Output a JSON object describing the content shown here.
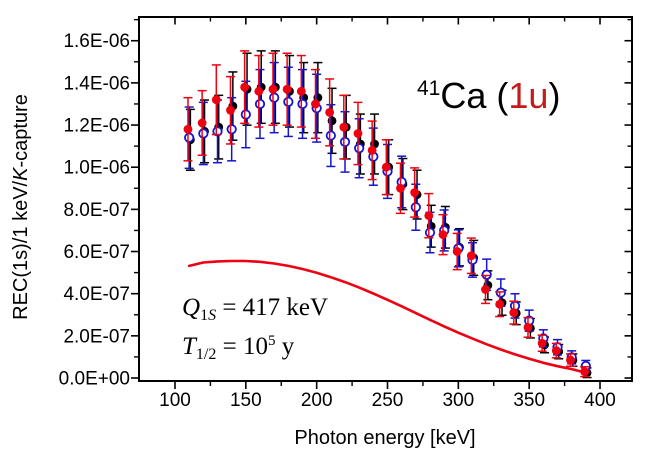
{
  "figure": {
    "title": {
      "mass": "41",
      "element": "Ca",
      "open": " (",
      "mode": "1u",
      "close": ")",
      "mode_color": "#c41a1c"
    },
    "annotations": {
      "q_symbol": "Q",
      "q_sub_num": "1",
      "q_sub_s": "S",
      "q_rest": " = 417 keV",
      "t_symbol": "T",
      "t_sub": "1/2",
      "t_mid": " = 10",
      "t_exp": "5",
      "t_unit": " y"
    }
  },
  "chart_data": {
    "type": "scatter",
    "title": "41Ca (1u)",
    "xlabel": "Photon energy [keV]",
    "ylabel": "REC(1s)/1 keV/K-capture",
    "ylabel_parts": {
      "pre": "REC(1s)/1 keV/",
      "italic_k": "K",
      "post": "-capture"
    },
    "grid": false,
    "legend": "none",
    "x_unit": "keV",
    "values_unit": "1e-6 per keV per K-capture",
    "x_axis": {
      "min": 75,
      "max": 422,
      "major_ticks": [
        100,
        150,
        200,
        250,
        300,
        350,
        400
      ],
      "tick_labels": [
        "100",
        "150",
        "200",
        "250",
        "300",
        "350",
        "400"
      ],
      "minor_ticks": [
        125,
        175,
        225,
        275,
        325,
        375
      ]
    },
    "y_axis": {
      "min": 0,
      "max": 1.71,
      "major_ticks": [
        0,
        0.2,
        0.4,
        0.6,
        0.8,
        1.0,
        1.2,
        1.4,
        1.6
      ],
      "tick_labels": [
        "0.0E+00",
        "2.0E-07",
        "4.0E-07",
        "6.0E-07",
        "8.0E-07",
        "1.0E-06",
        "1.2E-06",
        "1.4E-06",
        "1.6E-06"
      ],
      "minor_ticks": [
        0.1,
        0.3,
        0.5,
        0.7,
        0.9,
        1.1,
        1.3,
        1.5,
        1.7
      ]
    },
    "x": [
      110,
      120,
      130,
      140,
      150,
      160,
      170,
      180,
      190,
      200,
      210,
      220,
      230,
      240,
      250,
      260,
      270,
      280,
      290,
      300,
      310,
      320,
      330,
      340,
      350,
      360,
      370,
      380,
      390
    ],
    "series": [
      {
        "name": "black-filled-circles",
        "marker": "filled-circle",
        "color": "#000000",
        "values": [
          1.13,
          1.17,
          1.19,
          1.29,
          1.37,
          1.38,
          1.38,
          1.36,
          1.33,
          1.33,
          1.22,
          1.19,
          1.11,
          1.11,
          1.0,
          0.92,
          0.87,
          0.72,
          0.715,
          0.62,
          0.57,
          0.44,
          0.357,
          0.307,
          0.236,
          0.157,
          0.125,
          0.085,
          0.025
        ]
      },
      {
        "name": "blue-open-circles",
        "marker": "open-circle",
        "color": "#1515cd",
        "values": [
          1.14,
          1.16,
          1.17,
          1.18,
          1.25,
          1.3,
          1.33,
          1.31,
          1.3,
          1.28,
          1.15,
          1.12,
          1.09,
          1.05,
          0.98,
          0.93,
          0.81,
          0.69,
          0.7,
          0.615,
          0.56,
          0.49,
          0.405,
          0.342,
          0.272,
          0.188,
          0.146,
          0.098,
          0.057
        ]
      },
      {
        "name": "red-filled-circles",
        "marker": "filled-circle",
        "color": "#ee0211",
        "values": [
          1.18,
          1.21,
          1.32,
          1.27,
          1.38,
          1.36,
          1.37,
          1.37,
          1.36,
          1.3,
          1.26,
          1.19,
          1.16,
          1.08,
          1.0,
          0.9,
          0.88,
          0.77,
          0.68,
          0.6,
          0.58,
          0.42,
          0.35,
          0.31,
          0.24,
          0.165,
          0.13,
          0.085,
          0.03
        ]
      }
    ],
    "error_model": {
      "slope": 0.11,
      "base": 0.02
    },
    "theory_curve": {
      "name": "theory-curve",
      "color": "#ee0211",
      "x": [
        110,
        120,
        130,
        140,
        150,
        160,
        170,
        180,
        190,
        200,
        210,
        220,
        230,
        240,
        250,
        260,
        270,
        280,
        290,
        300,
        310,
        320,
        330,
        340,
        350,
        360,
        370,
        380,
        390
      ],
      "values": [
        0.532,
        0.548,
        0.553,
        0.555,
        0.555,
        0.551,
        0.543,
        0.532,
        0.517,
        0.499,
        0.478,
        0.455,
        0.429,
        0.401,
        0.371,
        0.34,
        0.308,
        0.276,
        0.245,
        0.215,
        0.187,
        0.16,
        0.135,
        0.112,
        0.091,
        0.072,
        0.056,
        0.042,
        0.025
      ]
    }
  }
}
